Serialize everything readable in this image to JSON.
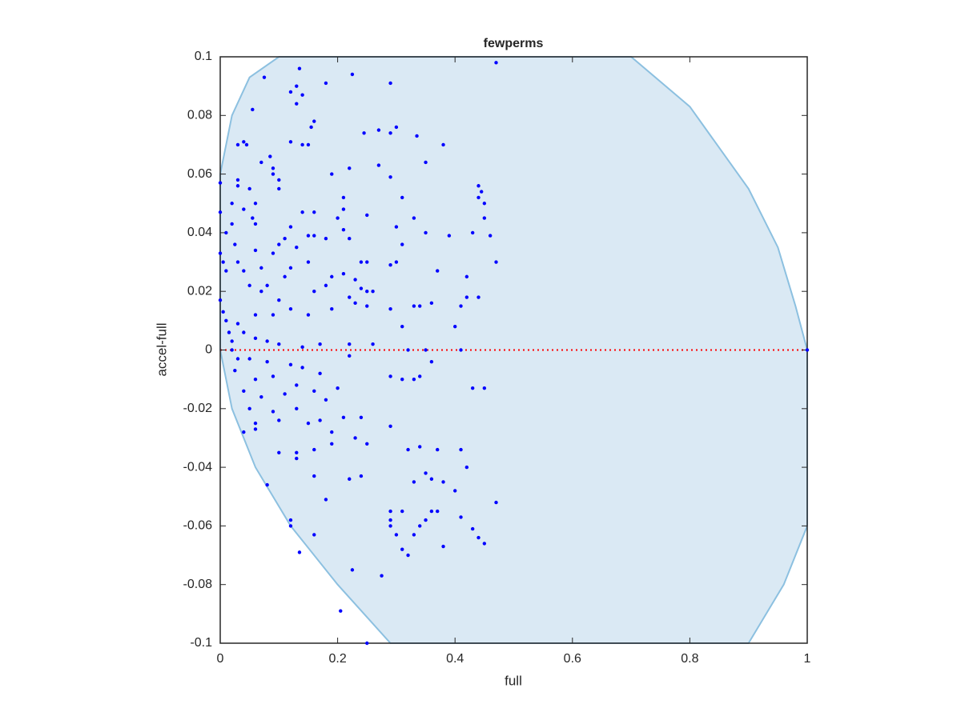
{
  "chart_data": {
    "type": "scatter",
    "title": "fewperms",
    "xlabel": "full",
    "ylabel": "accel-full",
    "xlim": [
      0,
      1
    ],
    "ylim": [
      -0.1,
      0.1
    ],
    "xticks": [
      0,
      0.2,
      0.4,
      0.6,
      0.8,
      1
    ],
    "yticks": [
      -0.1,
      -0.08,
      -0.06,
      -0.04,
      -0.02,
      0,
      0.02,
      0.04,
      0.06,
      0.08,
      0.1
    ],
    "color": "#0000ff",
    "region": {
      "color": "#dae9f4",
      "edge_color": "#8cc0e0",
      "x": [
        0,
        0.02,
        0.05,
        0.1,
        0.7,
        0.8,
        0.9,
        0.95,
        0.98,
        1,
        1,
        0.96,
        0.9,
        0.29,
        0.2,
        0.12,
        0.06,
        0.02,
        0
      ],
      "y": [
        0.06,
        0.08,
        0.093,
        0.1,
        0.1,
        0.083,
        0.055,
        0.035,
        0.015,
        0,
        -0.06,
        -0.08,
        -0.1,
        -0.1,
        -0.08,
        -0.06,
        -0.04,
        -0.02,
        0
      ]
    },
    "reference_line": {
      "y": 0,
      "color": "#ff0000"
    },
    "x": [
      0.47,
      0.075,
      0.135,
      0.18,
      0.225,
      0.29,
      0.12,
      0.13,
      0.14,
      0.13,
      0.055,
      0.16,
      0.155,
      0.3,
      0.27,
      0.29,
      0.245,
      0.335,
      0.04,
      0.03,
      0.045,
      0.12,
      0.14,
      0.15,
      0.38,
      0.085,
      0.09,
      0.09,
      0.07,
      0.35,
      0.27,
      0.22,
      0.19,
      0.29,
      0.1,
      0,
      0.03,
      0.03,
      0.44,
      0.445,
      0.1,
      0.05,
      0.21,
      0.31,
      0.21,
      0.02,
      0.06,
      0,
      0.04,
      0.14,
      0.16,
      0.2,
      0.25,
      0.33,
      0.45,
      0.45,
      0.44,
      0.055,
      0.06,
      0.02,
      0.01,
      0.12,
      0.3,
      0.35,
      0.39,
      0.21,
      0.16,
      0.15,
      0.11,
      0.1,
      0.18,
      0.46,
      0.43,
      0.22,
      0.31,
      0.025,
      0.06,
      0.09,
      0.13,
      0.47,
      0.29,
      0.42,
      0.37,
      0.15,
      0.24,
      0.25,
      0.3,
      0.03,
      0.04,
      0.07,
      0.12,
      0.11,
      0.08,
      0.19,
      0.21,
      0.18,
      0.23,
      0.24,
      0.25,
      0.26,
      0.07,
      0.05,
      0.1,
      0.16,
      0.12,
      0.22,
      0.23,
      0.42,
      0.44,
      0.41,
      0.34,
      0.33,
      0.36,
      0.29,
      0.19,
      0.25,
      0.06,
      0.09,
      0.15,
      0,
      0.005,
      0.01,
      0,
      0.005,
      0.01,
      0.015,
      0.02,
      0.02,
      0.03,
      0.04,
      0.06,
      0.08,
      0.1,
      0.14,
      0.17,
      0.22,
      0.26,
      0.31,
      0.4,
      0.32,
      0.35,
      0.41,
      1,
      0.03,
      0.05,
      0.08,
      0.12,
      0.14,
      0.17,
      0.22,
      0.29,
      0.31,
      0.33,
      0.34,
      0.36,
      0.43,
      0.45,
      0.025,
      0.06,
      0.09,
      0.13,
      0.16,
      0.2,
      0.04,
      0.07,
      0.11,
      0.18,
      0.05,
      0.09,
      0.13,
      0.17,
      0.21,
      0.24,
      0.06,
      0.1,
      0.15,
      0.19,
      0.04,
      0.06,
      0.23,
      0.29,
      0.19,
      0.25,
      0.1,
      0.13,
      0.16,
      0.32,
      0.34,
      0.37,
      0.41,
      0.13,
      0.42,
      0.33,
      0.36,
      0.38,
      0.16,
      0.22,
      0.24,
      0.35,
      0.4,
      0.08,
      0.18,
      0.47,
      0.29,
      0.31,
      0.29,
      0.36,
      0.37,
      0.35,
      0.41,
      0.12,
      0.12,
      0.29,
      0.34,
      0.43,
      0.16,
      0.3,
      0.33,
      0.44,
      0.45,
      0.38,
      0.31,
      0.32,
      0.135,
      0.225,
      0.275,
      0.205,
      0.25
    ],
    "y": [
      0.098,
      0.093,
      0.096,
      0.091,
      0.094,
      0.091,
      0.088,
      0.09,
      0.087,
      0.084,
      0.082,
      0.078,
      0.076,
      0.076,
      0.075,
      0.074,
      0.074,
      0.073,
      0.071,
      0.07,
      0.07,
      0.071,
      0.07,
      0.07,
      0.07,
      0.066,
      0.062,
      0.06,
      0.064,
      0.064,
      0.063,
      0.062,
      0.06,
      0.059,
      0.058,
      0.057,
      0.058,
      0.056,
      0.056,
      0.054,
      0.055,
      0.055,
      0.052,
      0.052,
      0.048,
      0.05,
      0.05,
      0.047,
      0.048,
      0.047,
      0.047,
      0.045,
      0.046,
      0.045,
      0.045,
      0.05,
      0.052,
      0.045,
      0.043,
      0.043,
      0.04,
      0.042,
      0.042,
      0.04,
      0.039,
      0.041,
      0.039,
      0.039,
      0.038,
      0.036,
      0.038,
      0.039,
      0.04,
      0.038,
      0.036,
      0.036,
      0.034,
      0.033,
      0.035,
      0.03,
      0.029,
      0.025,
      0.027,
      0.03,
      0.03,
      0.03,
      0.03,
      0.03,
      0.027,
      0.028,
      0.028,
      0.025,
      0.022,
      0.025,
      0.026,
      0.022,
      0.024,
      0.021,
      0.02,
      0.02,
      0.02,
      0.022,
      0.017,
      0.02,
      0.014,
      0.018,
      0.016,
      0.018,
      0.018,
      0.015,
      0.015,
      0.015,
      0.016,
      0.014,
      0.014,
      0.015,
      0.012,
      0.012,
      0.012,
      0.033,
      0.03,
      0.027,
      0.017,
      0.013,
      0.01,
      0.006,
      0,
      0.003,
      0.009,
      0.006,
      0.004,
      0.003,
      0.002,
      0.001,
      0.002,
      0.002,
      0.002,
      0.008,
      0.008,
      0,
      0,
      0,
      0,
      -0.003,
      -0.003,
      -0.004,
      -0.005,
      -0.006,
      -0.008,
      -0.002,
      -0.009,
      -0.01,
      -0.01,
      -0.009,
      -0.004,
      -0.013,
      -0.013,
      -0.007,
      -0.01,
      -0.009,
      -0.012,
      -0.014,
      -0.013,
      -0.014,
      -0.016,
      -0.015,
      -0.017,
      -0.02,
      -0.021,
      -0.02,
      -0.024,
      -0.023,
      -0.023,
      -0.025,
      -0.024,
      -0.025,
      -0.028,
      -0.028,
      -0.027,
      -0.03,
      -0.026,
      -0.032,
      -0.032,
      -0.035,
      -0.035,
      -0.034,
      -0.034,
      -0.033,
      -0.034,
      -0.034,
      -0.037,
      -0.04,
      -0.045,
      -0.044,
      -0.045,
      -0.043,
      -0.044,
      -0.043,
      -0.042,
      -0.048,
      -0.046,
      -0.051,
      -0.052,
      -0.055,
      -0.055,
      -0.058,
      -0.055,
      -0.055,
      -0.058,
      -0.057,
      -0.058,
      -0.06,
      -0.06,
      -0.06,
      -0.061,
      -0.063,
      -0.063,
      -0.063,
      -0.064,
      -0.066,
      -0.067,
      -0.068,
      -0.07,
      -0.069,
      -0.075,
      -0.077,
      -0.089,
      -0.1
    ]
  }
}
